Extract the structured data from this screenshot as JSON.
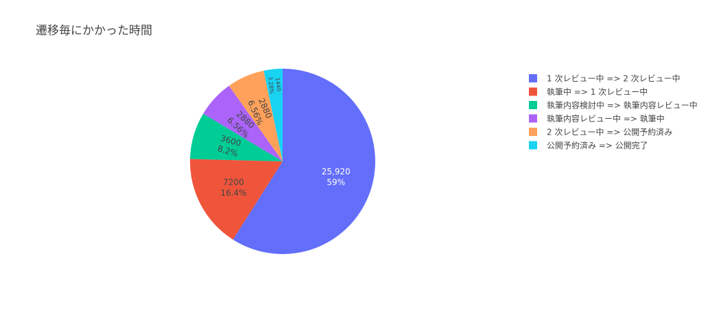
{
  "chart_data": {
    "type": "pie",
    "title": "遷移毎にかかった時間",
    "legend_position": "right",
    "slices": [
      {
        "label": "1 次レビュー中 => 2 次レビュー中",
        "value": 25920,
        "value_text": "25,920",
        "percent_text": "59%",
        "color": "#636efa",
        "text_color": "#ffffff"
      },
      {
        "label": "執筆中 => 1 次レビュー中",
        "value": 7200,
        "value_text": "7200",
        "percent_text": "16.4%",
        "color": "#ef553b",
        "text_color": "#444444"
      },
      {
        "label": "執筆内容検討中 => 執筆内容レビュー中",
        "value": 3600,
        "value_text": "3600",
        "percent_text": "8.2%",
        "color": "#00cc96",
        "text_color": "#444444"
      },
      {
        "label": "執筆内容レビュー中 => 執筆中",
        "value": 2880,
        "value_text": "2880",
        "percent_text": "6.56%",
        "color": "#ab63fa",
        "text_color": "#444444"
      },
      {
        "label": "2 次レビュー中 => 公開予約済み",
        "value": 2880,
        "value_text": "2880",
        "percent_text": "6.56%",
        "color": "#ffa15a",
        "text_color": "#444444"
      },
      {
        "label": "公開予約済み => 公開完了",
        "value": 1440,
        "value_text": "1440",
        "percent_text": "3.28%",
        "color": "#19d3f3",
        "text_color": "#444444"
      }
    ]
  }
}
